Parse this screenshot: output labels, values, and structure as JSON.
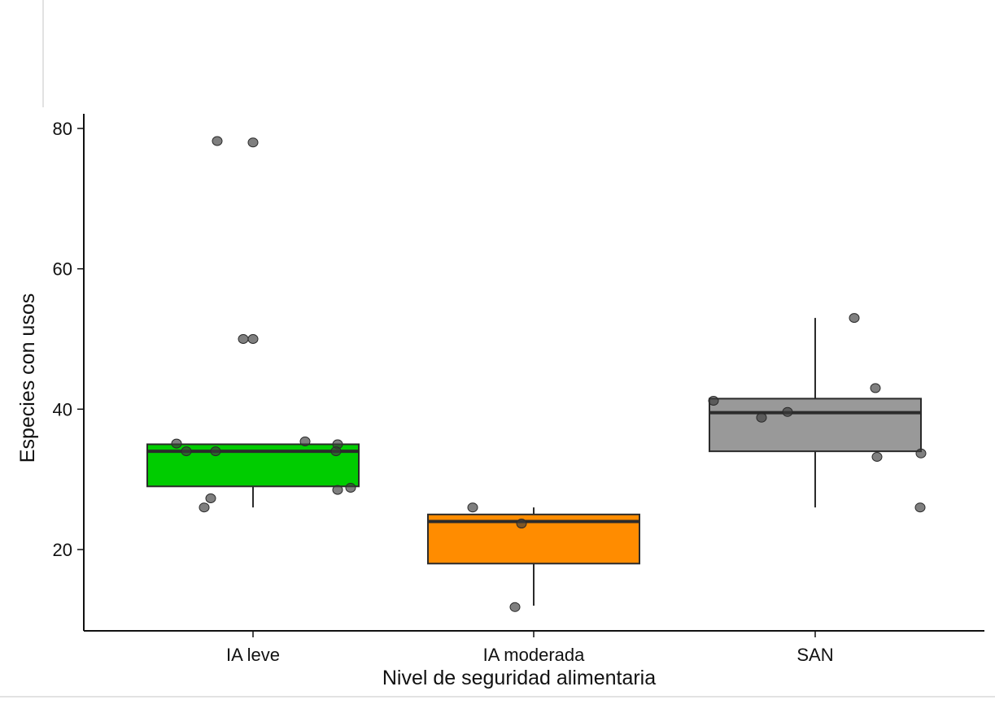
{
  "chart_data": {
    "type": "box",
    "xlabel": "Nivel de seguridad alimentaria",
    "ylabel": "Especies con usos",
    "ylim": [
      8,
      82
    ],
    "yticks": [
      20,
      40,
      60,
      80
    ],
    "grid": false,
    "groups": [
      {
        "name": "IA leve",
        "color": "#00cc00",
        "q1": 29,
        "median": 34,
        "q3": 35,
        "whisker_low": 26,
        "whisker_high": 35,
        "points": [
          78.2,
          78,
          50,
          50,
          35.4,
          35.1,
          35,
          34,
          34,
          34,
          28.5,
          28.8,
          27.3,
          26
        ]
      },
      {
        "name": "IA moderada",
        "color": "#ff8c00",
        "q1": 18,
        "median": 24,
        "q3": 25,
        "whisker_low": 12,
        "whisker_high": 26,
        "points": [
          26,
          23.7,
          11.8
        ]
      },
      {
        "name": "SAN",
        "color": "#999999",
        "q1": 34,
        "median": 39.5,
        "q3": 41.5,
        "whisker_low": 26,
        "whisker_high": 53,
        "points": [
          53,
          43,
          41.2,
          39.6,
          38.8,
          33.7,
          33.2,
          26
        ]
      }
    ]
  }
}
